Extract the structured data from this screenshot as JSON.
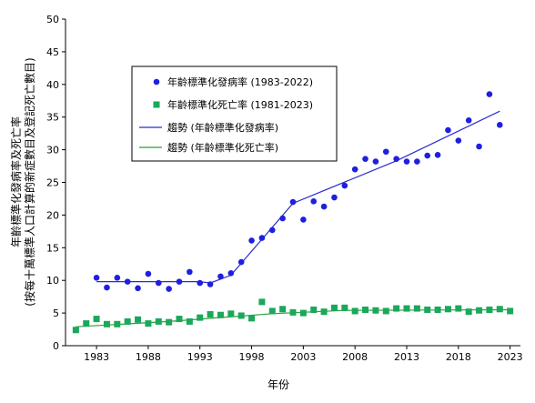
{
  "chart_data": {
    "type": "scatter",
    "xlabel": "年份",
    "ylabel_line1": "年齡標準化發病率及死亡率",
    "ylabel_line2": "(按每十萬標準人口計算的新症數目及登記死亡數目)",
    "xlim": [
      1980,
      2024
    ],
    "ylim": [
      0,
      50
    ],
    "x_ticks": [
      1983,
      1988,
      1993,
      1998,
      2003,
      2008,
      2013,
      2018,
      2023
    ],
    "y_ticks": [
      0,
      5,
      10,
      15,
      20,
      25,
      30,
      35,
      40,
      45,
      50
    ],
    "grid": false,
    "legend_position": "top-left",
    "series": [
      {
        "name": "年齡標準化發病率 (1983-2022)",
        "kind": "points",
        "marker": "circle",
        "color": "#1f1fe0",
        "x": [
          1983,
          1984,
          1985,
          1986,
          1987,
          1988,
          1989,
          1990,
          1991,
          1992,
          1993,
          1994,
          1995,
          1996,
          1997,
          1998,
          1999,
          2000,
          2001,
          2002,
          2003,
          2004,
          2005,
          2006,
          2007,
          2008,
          2009,
          2010,
          2011,
          2012,
          2013,
          2014,
          2015,
          2016,
          2017,
          2018,
          2019,
          2020,
          2021,
          2022
        ],
        "y": [
          10.4,
          8.9,
          10.4,
          9.8,
          8.8,
          11.0,
          9.6,
          8.7,
          9.8,
          11.3,
          9.6,
          9.4,
          10.6,
          11.1,
          12.8,
          16.1,
          16.5,
          17.7,
          19.5,
          22.0,
          19.3,
          22.1,
          21.3,
          22.7,
          24.5,
          27.0,
          28.6,
          28.2,
          29.7,
          28.6,
          28.2,
          28.2,
          29.1,
          29.2,
          33.0,
          31.4,
          34.5,
          30.5,
          38.5,
          33.8
        ]
      },
      {
        "name": "年齡標準化死亡率 (1981-2023)",
        "kind": "points",
        "marker": "square",
        "color": "#1aa85a",
        "x": [
          1981,
          1982,
          1983,
          1984,
          1985,
          1986,
          1987,
          1988,
          1989,
          1990,
          1991,
          1992,
          1993,
          1994,
          1995,
          1996,
          1997,
          1998,
          1999,
          2000,
          2001,
          2002,
          2003,
          2004,
          2005,
          2006,
          2007,
          2008,
          2009,
          2010,
          2011,
          2012,
          2013,
          2014,
          2015,
          2016,
          2017,
          2018,
          2019,
          2020,
          2021,
          2022,
          2023
        ],
        "y": [
          2.4,
          3.4,
          4.1,
          3.3,
          3.3,
          3.7,
          4.0,
          3.4,
          3.7,
          3.6,
          4.1,
          3.7,
          4.3,
          4.8,
          4.7,
          4.9,
          4.6,
          4.2,
          6.7,
          5.3,
          5.6,
          5.1,
          5.0,
          5.5,
          5.2,
          5.8,
          5.8,
          5.3,
          5.5,
          5.4,
          5.3,
          5.7,
          5.7,
          5.7,
          5.5,
          5.5,
          5.6,
          5.7,
          5.2,
          5.4,
          5.5,
          5.6,
          5.3
        ]
      },
      {
        "name": "趨勢 (年齡標準化發病率)",
        "kind": "line",
        "color": "#2b2bd0",
        "x": [
          1983,
          1993,
          1994,
          1995,
          1996,
          2002,
          2012,
          2022
        ],
        "y": [
          9.8,
          9.8,
          9.6,
          10.2,
          10.8,
          21.8,
          28.3,
          35.9
        ]
      },
      {
        "name": "趨勢 (年齡標準化死亡率)",
        "kind": "line",
        "color": "#2f9e3a",
        "x": [
          1981,
          1990,
          2000,
          2007,
          2023
        ],
        "y": [
          2.9,
          3.7,
          4.9,
          5.4,
          5.5
        ]
      }
    ]
  }
}
